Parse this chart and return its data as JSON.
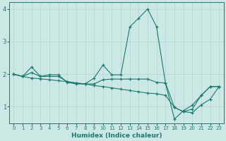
{
  "xlabel": "Humidex (Indice chaleur)",
  "x": [
    0,
    1,
    2,
    3,
    4,
    5,
    6,
    7,
    8,
    9,
    10,
    11,
    12,
    13,
    14,
    15,
    16,
    17,
    18,
    19,
    20,
    21,
    22,
    23
  ],
  "series": [
    [
      2.0,
      1.93,
      2.22,
      1.93,
      1.98,
      1.98,
      1.75,
      1.7,
      1.7,
      1.88,
      2.28,
      1.98,
      1.98,
      3.45,
      3.72,
      4.0,
      3.45,
      1.72,
      0.62,
      0.88,
      1.05,
      1.35,
      1.62,
      1.62
    ],
    [
      2.0,
      1.93,
      2.05,
      1.93,
      1.93,
      1.93,
      1.77,
      1.73,
      1.7,
      1.7,
      1.83,
      1.85,
      1.85,
      1.85,
      1.85,
      1.85,
      1.75,
      1.73,
      0.98,
      0.85,
      0.93,
      1.35,
      1.62,
      1.62
    ],
    [
      2.0,
      1.93,
      1.88,
      1.86,
      1.83,
      1.8,
      1.77,
      1.73,
      1.7,
      1.65,
      1.62,
      1.58,
      1.54,
      1.5,
      1.46,
      1.42,
      1.4,
      1.35,
      0.98,
      0.85,
      0.82,
      1.06,
      1.23,
      1.62
    ]
  ],
  "line_color": "#1a7a6e",
  "bg_color": "#cce8e5",
  "grid_color": "#b8d8d4",
  "ylim": [
    0.5,
    4.2
  ],
  "xlim": [
    -0.5,
    23.5
  ],
  "yticks": [
    1,
    2,
    3,
    4
  ],
  "xticks": [
    0,
    1,
    2,
    3,
    4,
    5,
    6,
    7,
    8,
    9,
    10,
    11,
    12,
    13,
    14,
    15,
    16,
    17,
    18,
    19,
    20,
    21,
    22,
    23
  ],
  "figsize": [
    3.2,
    2.0
  ],
  "dpi": 100
}
